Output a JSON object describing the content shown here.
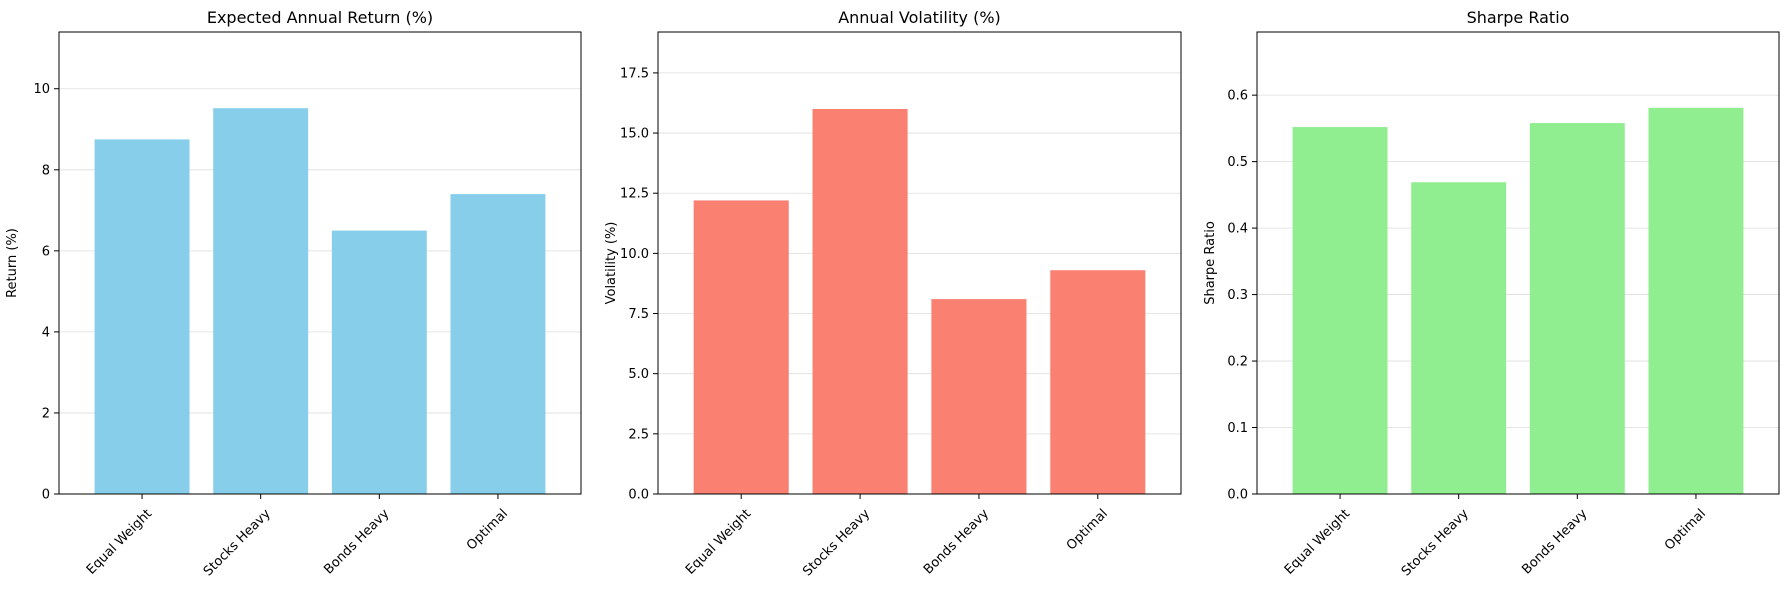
{
  "chart_data": [
    {
      "type": "bar",
      "title": "Expected Annual Return (%)",
      "ylabel": "Return (%)",
      "categories": [
        "Equal Weight",
        "Stocks Heavy",
        "Bonds Heavy",
        "Optimal"
      ],
      "values": [
        8.75,
        9.52,
        6.5,
        7.4
      ],
      "ylim": [
        0,
        11.4
      ],
      "yticks": [
        0,
        2,
        4,
        6,
        8,
        10
      ],
      "ytick_labels": [
        "0",
        "2",
        "4",
        "6",
        "8",
        "10"
      ],
      "color": "#87CEEB",
      "grid": "horizontal"
    },
    {
      "type": "bar",
      "title": "Annual Volatility (%)",
      "ylabel": "Volatility (%)",
      "categories": [
        "Equal Weight",
        "Stocks Heavy",
        "Bonds Heavy",
        "Optimal"
      ],
      "values": [
        12.2,
        16.0,
        8.1,
        9.3
      ],
      "ylim": [
        0,
        19.2
      ],
      "yticks": [
        0,
        2.5,
        5,
        7.5,
        10,
        12.5,
        15,
        17.5
      ],
      "ytick_labels": [
        "0.0",
        "2.5",
        "5.0",
        "7.5",
        "10.0",
        "12.5",
        "15.0",
        "17.5"
      ],
      "color": "#FA8072",
      "grid": "horizontal"
    },
    {
      "type": "bar",
      "title": "Sharpe Ratio",
      "ylabel": "Sharpe Ratio",
      "categories": [
        "Equal Weight",
        "Stocks Heavy",
        "Bonds Heavy",
        "Optimal"
      ],
      "values": [
        0.552,
        0.469,
        0.558,
        0.581
      ],
      "ylim": [
        0,
        0.695
      ],
      "yticks": [
        0,
        0.1,
        0.2,
        0.3,
        0.4,
        0.5,
        0.6
      ],
      "ytick_labels": [
        "0.0",
        "0.1",
        "0.2",
        "0.3",
        "0.4",
        "0.5",
        "0.6"
      ],
      "color": "#90EE90",
      "grid": "horizontal"
    }
  ]
}
